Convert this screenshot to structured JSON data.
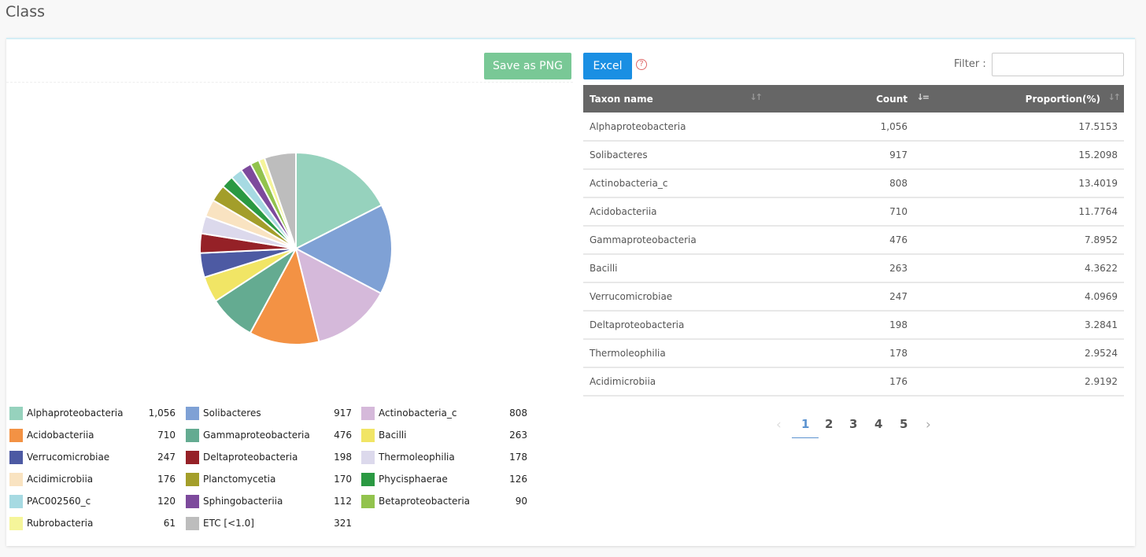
{
  "header": {
    "title": "Class"
  },
  "toolbar": {
    "save_png_label": "Save as PNG",
    "excel_label": "Excel",
    "help_icon": "?"
  },
  "filter": {
    "label": "Filter :",
    "value": ""
  },
  "colors": {
    "slices": [
      "#96d2bd",
      "#7fa1d5",
      "#d5b9da",
      "#f39244",
      "#64ab91",
      "#f1e565",
      "#4d5aa3",
      "#952127",
      "#dcd9ec",
      "#f9e3c1",
      "#a39e2a",
      "#2a9942",
      "#a6dae2",
      "#7d4a9c",
      "#92c34d",
      "#f5f59a",
      "#bdbdbd"
    ],
    "table_header": "#666666",
    "btn_png": "#79c896",
    "btn_excel": "#1a8fe3"
  },
  "chart_data": {
    "type": "pie",
    "categories": [
      "Alphaproteobacteria",
      "Solibacteres",
      "Actinobacteria_c",
      "Acidobacteriia",
      "Gammaproteobacteria",
      "Bacilli",
      "Verrucomicrobiae",
      "Deltaproteobacteria",
      "Thermoleophilia",
      "Acidimicrobiia",
      "Planctomycetia",
      "Phycisphaerae",
      "PAC002560_c",
      "Sphingobacteriia",
      "Betaproteobacteria",
      "Rubrobacteria",
      "ETC [<1.0]"
    ],
    "values": [
      1056,
      917,
      808,
      710,
      476,
      263,
      247,
      198,
      178,
      176,
      170,
      126,
      120,
      112,
      90,
      61,
      321
    ],
    "value_labels": [
      "1,056",
      "917",
      "808",
      "710",
      "476",
      "263",
      "247",
      "198",
      "178",
      "176",
      "170",
      "126",
      "120",
      "112",
      "90",
      "61",
      "321"
    ],
    "legend_position": "bottom"
  },
  "table": {
    "columns": [
      {
        "label": "Taxon name",
        "sort_icon": "↓↑"
      },
      {
        "label": "Count",
        "sort_icon": "↓="
      },
      {
        "label": "Proportion(%)",
        "sort_icon": "↓↑"
      }
    ],
    "rows": [
      [
        "Alphaproteobacteria",
        "1,056",
        "17.5153"
      ],
      [
        "Solibacteres",
        "917",
        "15.2098"
      ],
      [
        "Actinobacteria_c",
        "808",
        "13.4019"
      ],
      [
        "Acidobacteriia",
        "710",
        "11.7764"
      ],
      [
        "Gammaproteobacteria",
        "476",
        "7.8952"
      ],
      [
        "Bacilli",
        "263",
        "4.3622"
      ],
      [
        "Verrucomicrobiae",
        "247",
        "4.0969"
      ],
      [
        "Deltaproteobacteria",
        "198",
        "3.2841"
      ],
      [
        "Thermoleophilia",
        "178",
        "2.9524"
      ],
      [
        "Acidimicrobiia",
        "176",
        "2.9192"
      ]
    ]
  },
  "pagination": {
    "prev": "‹",
    "pages": [
      "1",
      "2",
      "3",
      "4",
      "5"
    ],
    "active_page": "1",
    "next": "›"
  }
}
